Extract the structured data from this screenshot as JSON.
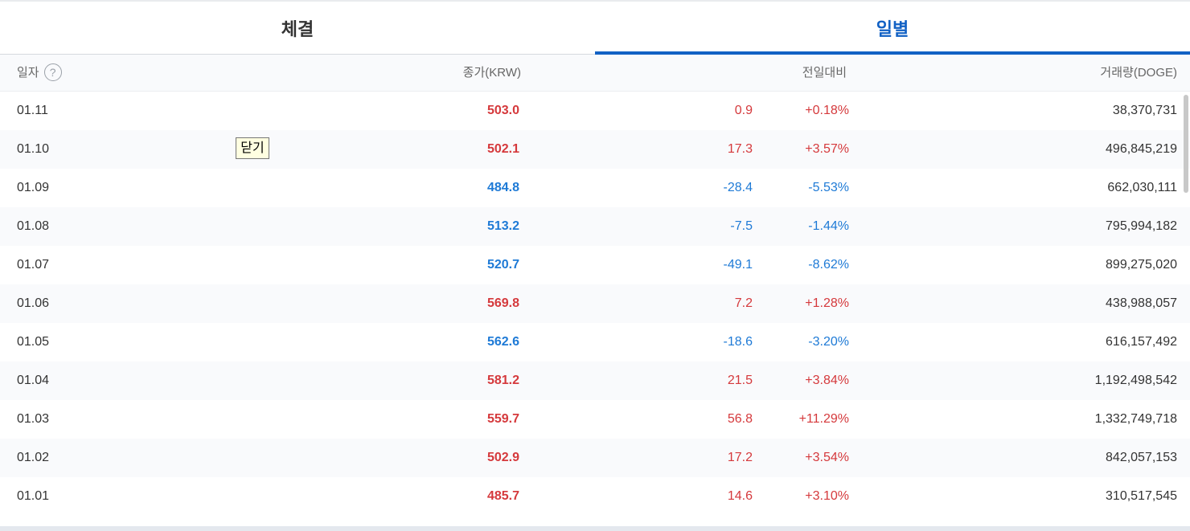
{
  "tabs": [
    {
      "label": "체결",
      "active": false
    },
    {
      "label": "일별",
      "active": true
    }
  ],
  "headers": {
    "date": "일자",
    "help_icon": "?",
    "close": "종가(KRW)",
    "change": "전일대비",
    "volume": "거래량(DOGE)"
  },
  "tooltip": "닫기",
  "colors": {
    "up": "#d5393c",
    "down": "#1e7ad6",
    "accent": "#1261c4"
  },
  "rows": [
    {
      "date": "01.11",
      "close": "503.0",
      "change": "0.9",
      "rate": "+0.18%",
      "volume": "38,370,731",
      "dir": "up"
    },
    {
      "date": "01.10",
      "close": "502.1",
      "change": "17.3",
      "rate": "+3.57%",
      "volume": "496,845,219",
      "dir": "up"
    },
    {
      "date": "01.09",
      "close": "484.8",
      "change": "-28.4",
      "rate": "-5.53%",
      "volume": "662,030,111",
      "dir": "down"
    },
    {
      "date": "01.08",
      "close": "513.2",
      "change": "-7.5",
      "rate": "-1.44%",
      "volume": "795,994,182",
      "dir": "down"
    },
    {
      "date": "01.07",
      "close": "520.7",
      "change": "-49.1",
      "rate": "-8.62%",
      "volume": "899,275,020",
      "dir": "down"
    },
    {
      "date": "01.06",
      "close": "569.8",
      "change": "7.2",
      "rate": "+1.28%",
      "volume": "438,988,057",
      "dir": "up"
    },
    {
      "date": "01.05",
      "close": "562.6",
      "change": "-18.6",
      "rate": "-3.20%",
      "volume": "616,157,492",
      "dir": "down"
    },
    {
      "date": "01.04",
      "close": "581.2",
      "change": "21.5",
      "rate": "+3.84%",
      "volume": "1,192,498,542",
      "dir": "up"
    },
    {
      "date": "01.03",
      "close": "559.7",
      "change": "56.8",
      "rate": "+11.29%",
      "volume": "1,332,749,718",
      "dir": "up"
    },
    {
      "date": "01.02",
      "close": "502.9",
      "change": "17.2",
      "rate": "+3.54%",
      "volume": "842,057,153",
      "dir": "up"
    },
    {
      "date": "01.01",
      "close": "485.7",
      "change": "14.6",
      "rate": "+3.10%",
      "volume": "310,517,545",
      "dir": "up"
    }
  ]
}
